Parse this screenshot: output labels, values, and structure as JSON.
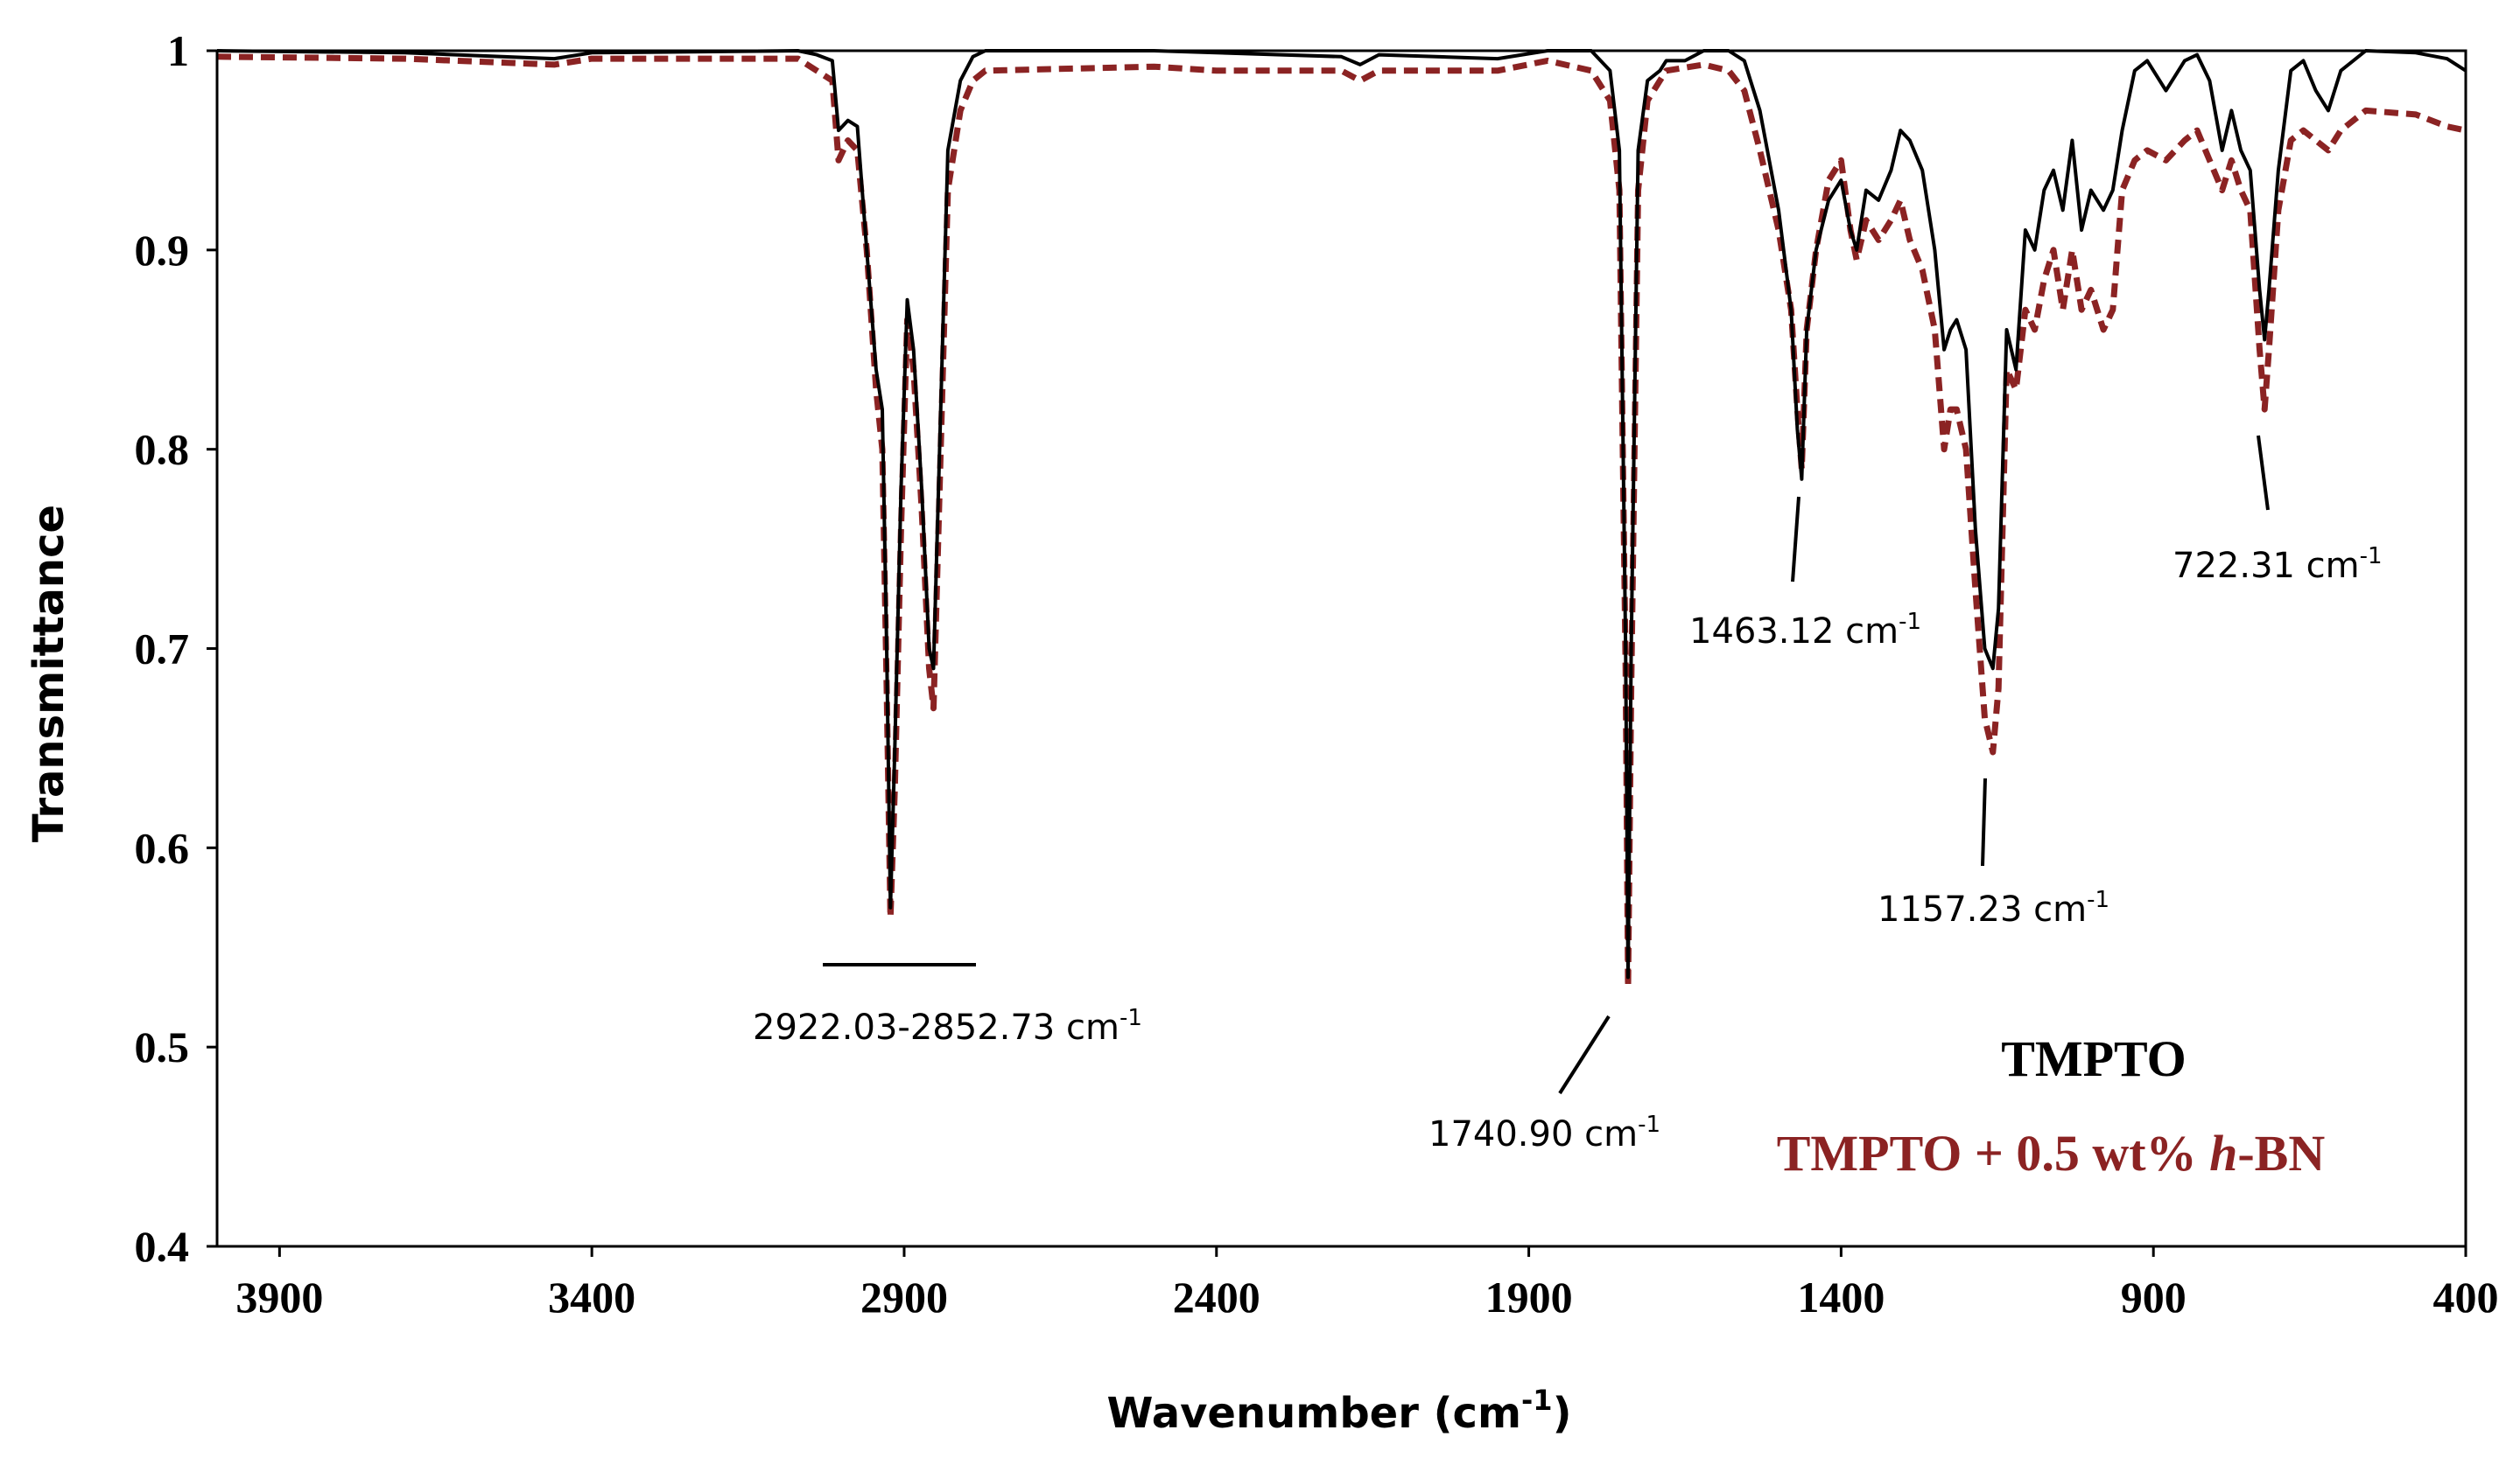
{
  "chart_data": {
    "type": "line",
    "title": "",
    "xlabel": "Wavenumber (cm",
    "xlabel_sup": "-1",
    "xlabel_close": ")",
    "ylabel": "Transmittance",
    "xlim": [
      4000,
      400
    ],
    "ylim": [
      0.4,
      1.0
    ],
    "x_ticks": [
      3900,
      3400,
      2900,
      2400,
      1900,
      1400,
      900,
      400
    ],
    "x_tick_labels": [
      "3900",
      "3400",
      "2900",
      "2400",
      "1900",
      "1400",
      "900",
      "400"
    ],
    "y_ticks": [
      0.4,
      0.5,
      0.6,
      0.7,
      0.8,
      0.9,
      1.0
    ],
    "y_tick_labels": [
      "0.4",
      "0.5",
      "0.6",
      "0.7",
      "0.8",
      "0.9",
      "1"
    ],
    "legend_position": "bottom-right",
    "series": [
      {
        "name": "TMPTO",
        "color": "#000000",
        "style": "solid",
        "points": [
          [
            4000,
            1.0
          ],
          [
            3700,
            0.999
          ],
          [
            3460,
            0.996
          ],
          [
            3400,
            0.999
          ],
          [
            3070,
            1.0
          ],
          [
            3040,
            0.998
          ],
          [
            3015,
            0.995
          ],
          [
            3005,
            0.96
          ],
          [
            2990,
            0.965
          ],
          [
            2975,
            0.962
          ],
          [
            2960,
            0.9
          ],
          [
            2945,
            0.84
          ],
          [
            2935,
            0.82
          ],
          [
            2928,
            0.7
          ],
          [
            2922,
            0.57
          ],
          [
            2915,
            0.65
          ],
          [
            2905,
            0.78
          ],
          [
            2895,
            0.875
          ],
          [
            2885,
            0.85
          ],
          [
            2872,
            0.78
          ],
          [
            2860,
            0.7
          ],
          [
            2853,
            0.69
          ],
          [
            2845,
            0.78
          ],
          [
            2830,
            0.95
          ],
          [
            2810,
            0.985
          ],
          [
            2790,
            0.997
          ],
          [
            2770,
            1.0
          ],
          [
            2500,
            1.0
          ],
          [
            2400,
            0.999
          ],
          [
            2200,
            0.997
          ],
          [
            2170,
            0.993
          ],
          [
            2140,
            0.998
          ],
          [
            1950,
            0.996
          ],
          [
            1870,
            1.0
          ],
          [
            1800,
            1.0
          ],
          [
            1770,
            0.99
          ],
          [
            1755,
            0.95
          ],
          [
            1745,
            0.7
          ],
          [
            1741,
            0.535
          ],
          [
            1736,
            0.7
          ],
          [
            1725,
            0.95
          ],
          [
            1710,
            0.985
          ],
          [
            1690,
            0.99
          ],
          [
            1680,
            0.995
          ],
          [
            1650,
            0.995
          ],
          [
            1620,
            1.0
          ],
          [
            1580,
            1.0
          ],
          [
            1555,
            0.995
          ],
          [
            1530,
            0.97
          ],
          [
            1500,
            0.92
          ],
          [
            1480,
            0.87
          ],
          [
            1470,
            0.81
          ],
          [
            1463,
            0.785
          ],
          [
            1455,
            0.86
          ],
          [
            1440,
            0.9
          ],
          [
            1420,
            0.925
          ],
          [
            1400,
            0.935
          ],
          [
            1385,
            0.91
          ],
          [
            1375,
            0.9
          ],
          [
            1360,
            0.93
          ],
          [
            1340,
            0.925
          ],
          [
            1320,
            0.94
          ],
          [
            1305,
            0.96
          ],
          [
            1290,
            0.955
          ],
          [
            1270,
            0.94
          ],
          [
            1250,
            0.9
          ],
          [
            1235,
            0.85
          ],
          [
            1225,
            0.86
          ],
          [
            1215,
            0.865
          ],
          [
            1200,
            0.85
          ],
          [
            1185,
            0.76
          ],
          [
            1170,
            0.7
          ],
          [
            1157,
            0.69
          ],
          [
            1148,
            0.72
          ],
          [
            1135,
            0.86
          ],
          [
            1120,
            0.84
          ],
          [
            1105,
            0.91
          ],
          [
            1090,
            0.9
          ],
          [
            1075,
            0.93
          ],
          [
            1060,
            0.94
          ],
          [
            1045,
            0.92
          ],
          [
            1030,
            0.955
          ],
          [
            1015,
            0.91
          ],
          [
            1000,
            0.93
          ],
          [
            980,
            0.92
          ],
          [
            965,
            0.93
          ],
          [
            950,
            0.96
          ],
          [
            930,
            0.99
          ],
          [
            910,
            0.995
          ],
          [
            880,
            0.98
          ],
          [
            850,
            0.995
          ],
          [
            830,
            0.998
          ],
          [
            810,
            0.985
          ],
          [
            790,
            0.95
          ],
          [
            775,
            0.97
          ],
          [
            760,
            0.95
          ],
          [
            745,
            0.94
          ],
          [
            730,
            0.88
          ],
          [
            722,
            0.855
          ],
          [
            715,
            0.88
          ],
          [
            700,
            0.94
          ],
          [
            680,
            0.99
          ],
          [
            660,
            0.995
          ],
          [
            640,
            0.98
          ],
          [
            620,
            0.97
          ],
          [
            600,
            0.99
          ],
          [
            560,
            1.0
          ],
          [
            480,
            0.999
          ],
          [
            430,
            0.996
          ],
          [
            400,
            0.99
          ]
        ]
      },
      {
        "name": "TMPTO + 0.5 wt% h-BN",
        "color": "#8B2323",
        "style": "dashed",
        "points": [
          [
            4000,
            0.997
          ],
          [
            3700,
            0.996
          ],
          [
            3460,
            0.993
          ],
          [
            3400,
            0.996
          ],
          [
            3070,
            0.996
          ],
          [
            3040,
            0.99
          ],
          [
            3015,
            0.985
          ],
          [
            3005,
            0.945
          ],
          [
            2990,
            0.955
          ],
          [
            2975,
            0.95
          ],
          [
            2960,
            0.9
          ],
          [
            2945,
            0.83
          ],
          [
            2935,
            0.8
          ],
          [
            2928,
            0.68
          ],
          [
            2922,
            0.565
          ],
          [
            2915,
            0.63
          ],
          [
            2905,
            0.76
          ],
          [
            2895,
            0.865
          ],
          [
            2885,
            0.84
          ],
          [
            2872,
            0.77
          ],
          [
            2860,
            0.69
          ],
          [
            2853,
            0.67
          ],
          [
            2845,
            0.76
          ],
          [
            2830,
            0.93
          ],
          [
            2810,
            0.97
          ],
          [
            2790,
            0.985
          ],
          [
            2770,
            0.99
          ],
          [
            2500,
            0.992
          ],
          [
            2400,
            0.99
          ],
          [
            2200,
            0.99
          ],
          [
            2170,
            0.985
          ],
          [
            2140,
            0.99
          ],
          [
            1950,
            0.99
          ],
          [
            1870,
            0.995
          ],
          [
            1800,
            0.99
          ],
          [
            1770,
            0.975
          ],
          [
            1755,
            0.93
          ],
          [
            1745,
            0.69
          ],
          [
            1741,
            0.53
          ],
          [
            1736,
            0.68
          ],
          [
            1725,
            0.93
          ],
          [
            1710,
            0.975
          ],
          [
            1690,
            0.985
          ],
          [
            1680,
            0.99
          ],
          [
            1620,
            0.993
          ],
          [
            1580,
            0.99
          ],
          [
            1555,
            0.98
          ],
          [
            1530,
            0.95
          ],
          [
            1500,
            0.91
          ],
          [
            1480,
            0.87
          ],
          [
            1470,
            0.82
          ],
          [
            1463,
            0.79
          ],
          [
            1455,
            0.86
          ],
          [
            1440,
            0.9
          ],
          [
            1420,
            0.935
          ],
          [
            1400,
            0.945
          ],
          [
            1385,
            0.91
          ],
          [
            1375,
            0.895
          ],
          [
            1360,
            0.915
          ],
          [
            1340,
            0.905
          ],
          [
            1320,
            0.915
          ],
          [
            1305,
            0.925
          ],
          [
            1290,
            0.905
          ],
          [
            1270,
            0.89
          ],
          [
            1250,
            0.86
          ],
          [
            1235,
            0.8
          ],
          [
            1225,
            0.82
          ],
          [
            1215,
            0.82
          ],
          [
            1200,
            0.8
          ],
          [
            1185,
            0.73
          ],
          [
            1170,
            0.665
          ],
          [
            1157,
            0.648
          ],
          [
            1148,
            0.68
          ],
          [
            1135,
            0.84
          ],
          [
            1120,
            0.83
          ],
          [
            1105,
            0.87
          ],
          [
            1090,
            0.86
          ],
          [
            1075,
            0.885
          ],
          [
            1060,
            0.9
          ],
          [
            1045,
            0.87
          ],
          [
            1030,
            0.9
          ],
          [
            1015,
            0.87
          ],
          [
            1000,
            0.88
          ],
          [
            980,
            0.86
          ],
          [
            965,
            0.87
          ],
          [
            950,
            0.93
          ],
          [
            930,
            0.945
          ],
          [
            910,
            0.95
          ],
          [
            880,
            0.945
          ],
          [
            850,
            0.955
          ],
          [
            830,
            0.96
          ],
          [
            810,
            0.945
          ],
          [
            790,
            0.93
          ],
          [
            775,
            0.945
          ],
          [
            760,
            0.93
          ],
          [
            745,
            0.92
          ],
          [
            730,
            0.85
          ],
          [
            722,
            0.82
          ],
          [
            715,
            0.85
          ],
          [
            700,
            0.92
          ],
          [
            680,
            0.955
          ],
          [
            660,
            0.96
          ],
          [
            640,
            0.955
          ],
          [
            620,
            0.95
          ],
          [
            600,
            0.96
          ],
          [
            560,
            0.97
          ],
          [
            480,
            0.968
          ],
          [
            430,
            0.962
          ],
          [
            400,
            0.96
          ]
        ]
      }
    ],
    "annotations": [
      {
        "text": "2922.03-2852.73 cm",
        "sup": "-1"
      },
      {
        "text": "1740.90 cm",
        "sup": "-1"
      },
      {
        "text": "1463.12 cm",
        "sup": "-1"
      },
      {
        "text": "1157.23 cm",
        "sup": "-1"
      },
      {
        "text": "722.31 cm",
        "sup": "-1"
      }
    ],
    "legend": [
      {
        "label": "TMPTO",
        "color": "#000000"
      },
      {
        "label_prefix": "TMPTO + 0.5 wt% ",
        "label_italic": "h",
        "label_suffix": "-BN",
        "color": "#8B2323"
      }
    ]
  }
}
